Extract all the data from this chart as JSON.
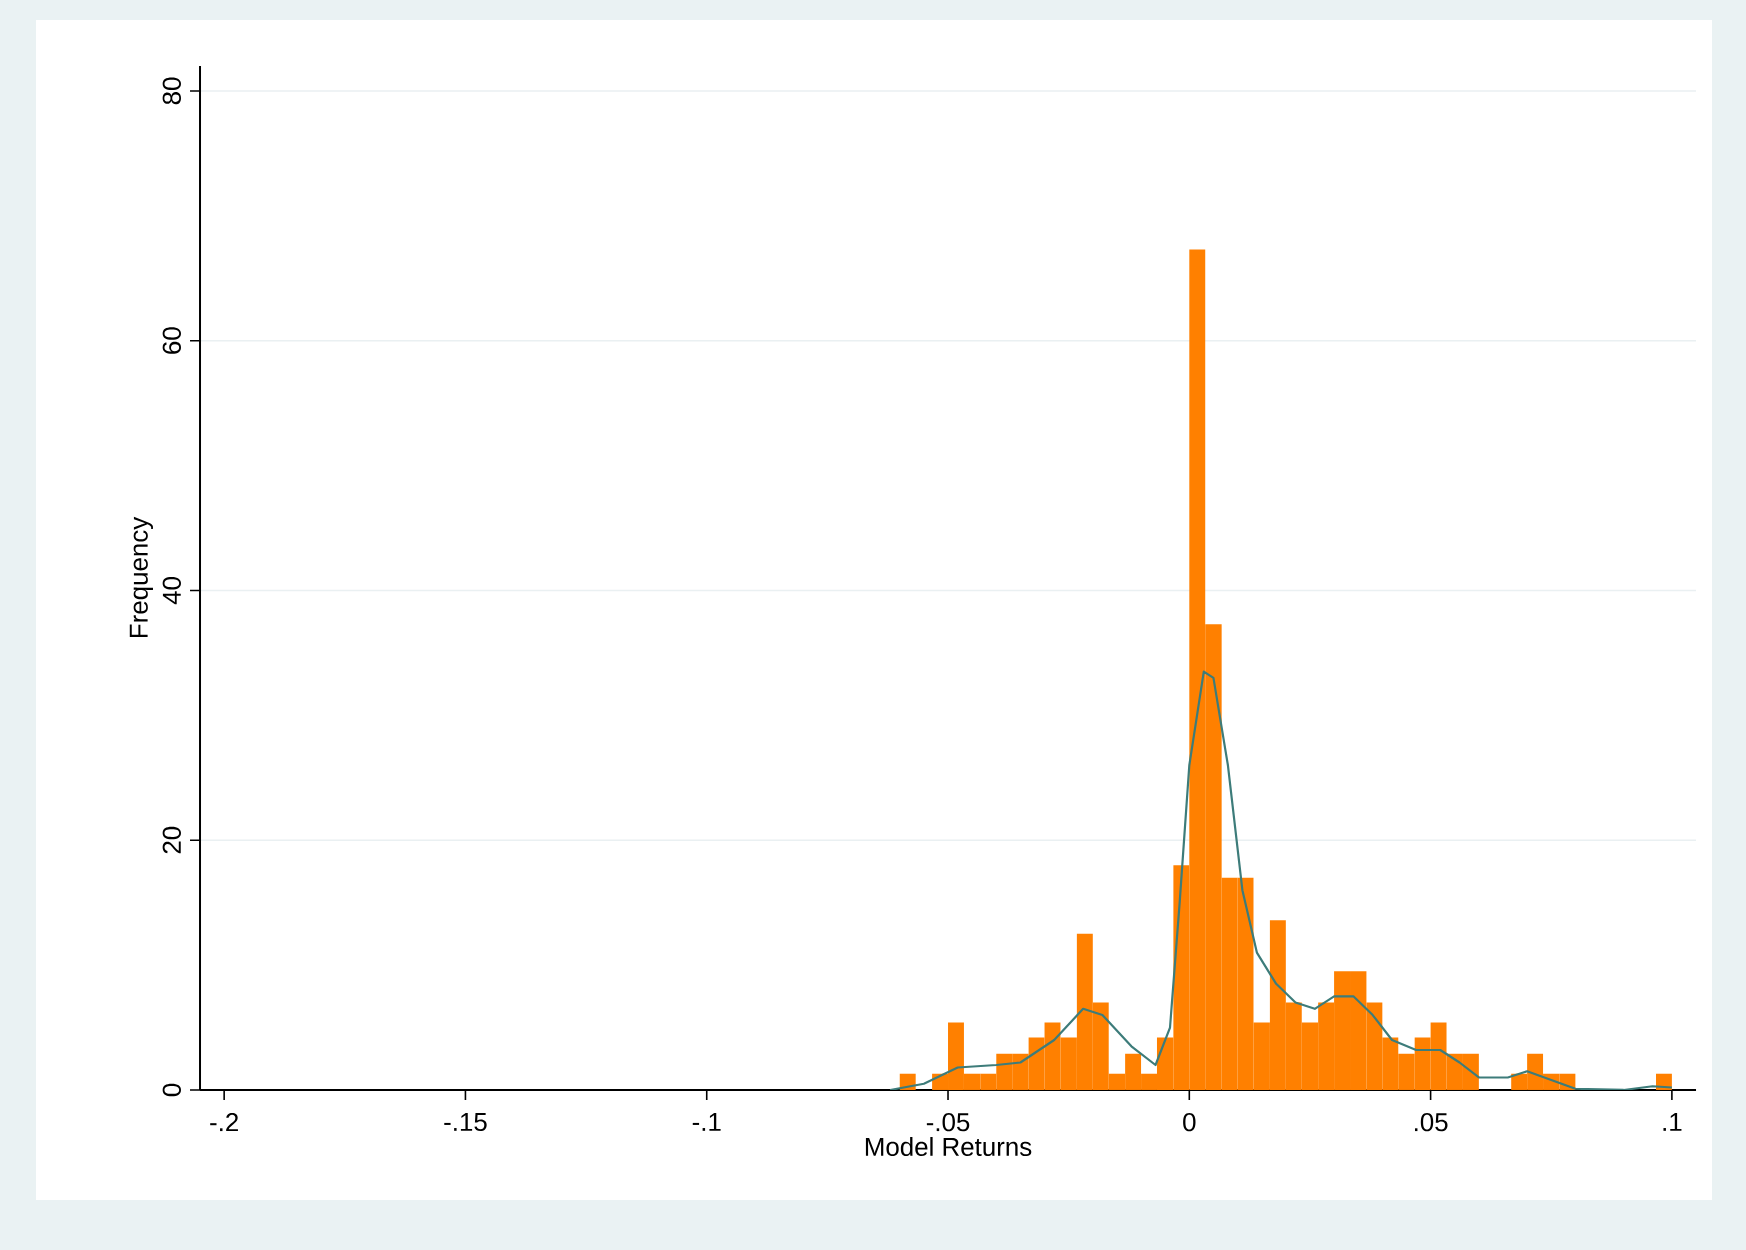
{
  "chart_data": {
    "type": "histogram",
    "xlabel": "Model Returns",
    "ylabel": "Frequency",
    "bins": [
      -0.06,
      -0.0567,
      -0.0533,
      -0.05,
      -0.0467,
      -0.0433,
      -0.04,
      -0.0367,
      -0.0333,
      -0.03,
      -0.0267,
      -0.0233,
      -0.02,
      -0.0167,
      -0.0133,
      -0.01,
      -0.0067,
      -0.0033,
      0,
      0.0033,
      0.0067,
      0.01,
      0.0133,
      0.0167,
      0.02,
      0.0233,
      0.0267,
      0.03,
      0.0333,
      0.0367,
      0.04,
      0.0433,
      0.0467,
      0.05,
      0.0533,
      0.0567,
      0.06,
      0.0633,
      0.0667,
      0.07,
      0.0733,
      0.0767,
      0.08,
      0.0833,
      0.0867,
      0.09,
      0.0933,
      0.0967,
      0.1
    ],
    "values": [
      1.3,
      0,
      1.3,
      5.4,
      1.3,
      1.3,
      2.9,
      2.9,
      4.2,
      5.4,
      4.2,
      12.5,
      7,
      1.3,
      2.9,
      1.3,
      4.2,
      18,
      67.3,
      37.3,
      17,
      17,
      5.4,
      13.6,
      7,
      5.4,
      7,
      9.5,
      9.5,
      7,
      4.2,
      2.9,
      4.2,
      5.4,
      2.9,
      2.9,
      0,
      0,
      1.3,
      2.9,
      1.3,
      1.3,
      0,
      0,
      0,
      0,
      0,
      1.3
    ],
    "color": "#ff8000",
    "series": [
      {
        "type": "line",
        "color": "#3d7c7a",
        "x": [
          -0.062,
          -0.055,
          -0.048,
          -0.04,
          -0.035,
          -0.028,
          -0.022,
          -0.018,
          -0.012,
          -0.007,
          -0.004,
          -0.002,
          0,
          0.003,
          0.005,
          0.008,
          0.011,
          0.014,
          0.018,
          0.022,
          0.026,
          0.03,
          0.034,
          0.038,
          0.042,
          0.047,
          0.052,
          0.056,
          0.06,
          0.066,
          0.07,
          0.075,
          0.08,
          0.09,
          0.096,
          0.1
        ],
        "values": [
          0,
          0.5,
          1.8,
          2,
          2.2,
          4,
          6.5,
          6,
          3.5,
          2,
          5,
          15,
          26,
          33.5,
          33,
          26,
          16,
          11,
          8.5,
          7,
          6.5,
          7.5,
          7.5,
          6,
          4,
          3.2,
          3.2,
          2.2,
          1,
          1,
          1.5,
          0.8,
          0.1,
          0,
          0.3,
          0.2
        ]
      }
    ],
    "xlim": [
      -0.205,
      0.105
    ],
    "ylim": [
      0,
      82
    ],
    "xticks": [
      {
        "value": -0.2,
        "label": "-.2"
      },
      {
        "value": -0.15,
        "label": "-.15"
      },
      {
        "value": -0.1,
        "label": "-.1"
      },
      {
        "value": -0.05,
        "label": "-.05"
      },
      {
        "value": 0,
        "label": "0"
      },
      {
        "value": 0.05,
        "label": ".05"
      },
      {
        "value": 0.1,
        "label": ".1"
      }
    ],
    "yticks": [
      0,
      20,
      40,
      60,
      80
    ],
    "grid": "y"
  }
}
